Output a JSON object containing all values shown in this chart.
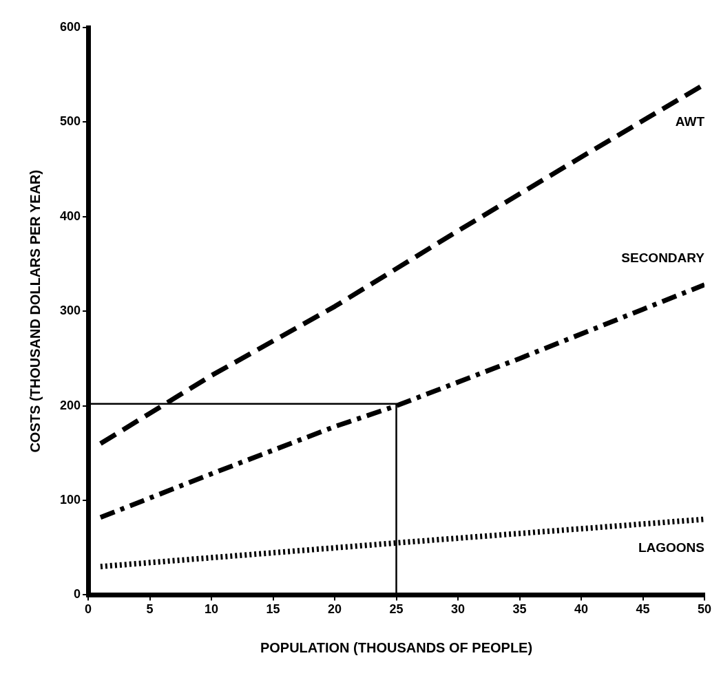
{
  "chart_data": {
    "type": "line",
    "xlabel": "POPULATION (THOUSANDS OF PEOPLE)",
    "ylabel": "COSTS (THOUSAND DOLLARS PER YEAR)",
    "xlim": [
      0,
      50
    ],
    "ylim": [
      0,
      600
    ],
    "xticks": [
      0,
      5,
      10,
      15,
      20,
      25,
      30,
      35,
      40,
      45,
      50
    ],
    "yticks": [
      0,
      100,
      200,
      300,
      400,
      500,
      600
    ],
    "grid": false,
    "legend": false,
    "marker": "none",
    "series": [
      {
        "name": "AWT",
        "color": "#000000",
        "line_style": "dashed",
        "x": [
          1,
          10,
          20,
          25,
          30,
          40,
          50
        ],
        "values": [
          160,
          232,
          305,
          345,
          385,
          463,
          540
        ]
      },
      {
        "name": "SECONDARY",
        "color": "#000000",
        "line_style": "dashdot",
        "x": [
          1,
          10,
          20,
          25,
          35,
          45,
          50
        ],
        "values": [
          82,
          128,
          178,
          200,
          250,
          302,
          328
        ]
      },
      {
        "name": "LAGOONS",
        "color": "#000000",
        "line_style": "dotted",
        "x": [
          1,
          25,
          50
        ],
        "values": [
          30,
          55,
          80
        ]
      },
      {
        "color": "#000000",
        "line_style": "solid",
        "x": [
          0,
          25,
          25
        ],
        "values": [
          202,
          202,
          0
        ]
      }
    ]
  }
}
